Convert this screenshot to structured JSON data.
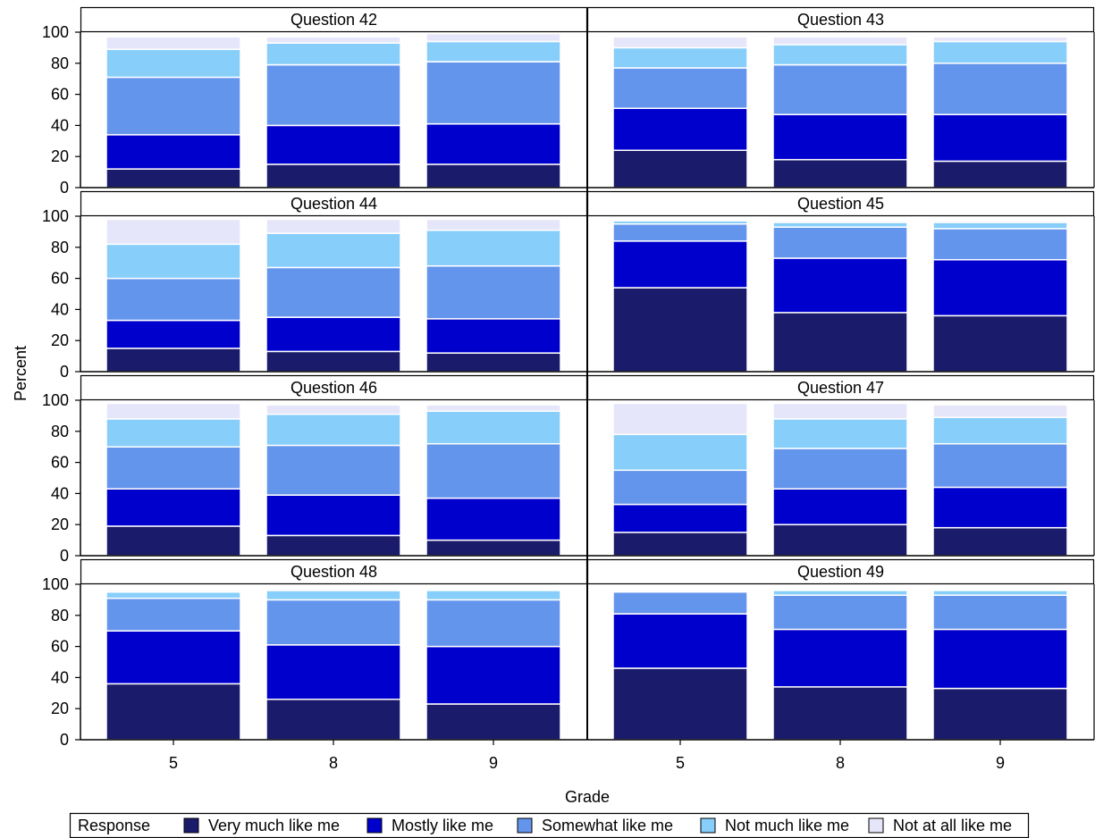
{
  "chart_data": {
    "type": "bar",
    "stacked": true,
    "ylabel": "Percent",
    "xlabel": "Grade",
    "ylim": [
      0,
      100
    ],
    "yticks": [
      0,
      20,
      40,
      60,
      80,
      100
    ],
    "categories": [
      "5",
      "8",
      "9"
    ],
    "legend": {
      "title": "Response",
      "placement": "bottom",
      "entries": [
        "Very much like me",
        "Mostly like me",
        "Somewhat like me",
        "Not much like me",
        "Not at all like me"
      ]
    },
    "colors": [
      "#1b1b6b",
      "#0000cd",
      "#6495ed",
      "#87cefa",
      "#e6e6fa"
    ],
    "panels": [
      {
        "title": "Question 42",
        "values": [
          [
            12,
            22,
            37,
            18,
            8
          ],
          [
            15,
            25,
            39,
            14,
            4
          ],
          [
            15,
            26,
            40,
            13,
            5
          ]
        ]
      },
      {
        "title": "Question 43",
        "values": [
          [
            24,
            27,
            26,
            13,
            7
          ],
          [
            18,
            29,
            32,
            13,
            5
          ],
          [
            17,
            30,
            33,
            14,
            3
          ]
        ]
      },
      {
        "title": "Question 44",
        "values": [
          [
            15,
            18,
            27,
            22,
            16
          ],
          [
            13,
            22,
            32,
            22,
            9
          ],
          [
            12,
            22,
            34,
            23,
            7
          ]
        ]
      },
      {
        "title": "Question 45",
        "values": [
          [
            54,
            30,
            11,
            2,
            1
          ],
          [
            38,
            35,
            20,
            3,
            1
          ],
          [
            36,
            36,
            20,
            4,
            1
          ]
        ]
      },
      {
        "title": "Question 46",
        "values": [
          [
            19,
            24,
            27,
            18,
            10
          ],
          [
            13,
            26,
            32,
            20,
            6
          ],
          [
            10,
            27,
            35,
            21,
            4
          ]
        ]
      },
      {
        "title": "Question 47",
        "values": [
          [
            15,
            18,
            22,
            23,
            20
          ],
          [
            20,
            23,
            26,
            19,
            10
          ],
          [
            18,
            26,
            28,
            17,
            8
          ]
        ]
      },
      {
        "title": "Question 48",
        "values": [
          [
            36,
            34,
            21,
            4,
            1
          ],
          [
            26,
            35,
            29,
            6,
            1
          ],
          [
            23,
            37,
            30,
            6,
            0
          ]
        ]
      },
      {
        "title": "Question 49",
        "values": [
          [
            46,
            35,
            14,
            0,
            0
          ],
          [
            34,
            37,
            22,
            3,
            0
          ],
          [
            33,
            38,
            22,
            3,
            0
          ]
        ]
      }
    ]
  }
}
